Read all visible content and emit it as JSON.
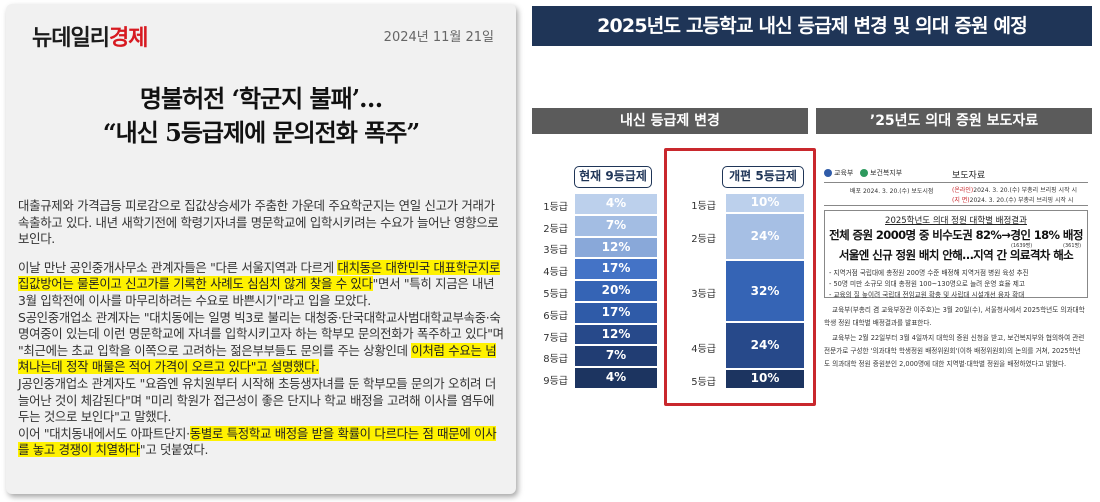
{
  "article": {
    "logo_part1": "뉴데일리",
    "logo_part2": "경제",
    "date": "2024년 11월 21일",
    "title_line1": "명불허전 ‘학군지 불패’…",
    "title_line2": "“내신 5등급제에 문의전화 폭주”",
    "p1": "대출규제와 가격급등 피로감으로 집값상승세가 주춤한 가운데 주요학군지는 연일 신고가 거래가 속출하고 있다. 내년 새학기전에 학령기자녀를 명문학교에 입학시키려는 수요가 늘어난 영향으로 보인다.",
    "p2_a": "이날 만난 공인중개사무소 관계자들은 \"다른 서울지역과 다르게 ",
    "p2_hl": "대치동은 대한민국 대표학군지로 집값방어는 물론이고 신고가를 기록한 사례도 심심치 않게 찾을 수 있다",
    "p2_b": "\"면서 \"특히 지금은 내년 3월 입학전에 이사를 마무리하려는 수요로 바쁜시기\"라고 입을 모았다.",
    "p3_a": "S공인중개업소 관계자는 \"대치동에는 일명 빅3로 불리는 대청중·단국대학교사범대학교부속중·숙명여중이 있는데 이런 명문학교에 자녀를 입학시키고자 하는 학부모 문의전화가 폭주하고 있다\"며 \"최근에는 초교 입학을 이쪽으로 고려하는 젊은부부들도 문의를 주는 상황인데 ",
    "p3_hl": "이처럼 수요는 넘쳐나는데 정작 매물은 적어 가격이 오르고 있다\"고 설명했다.",
    "p4": "J공인중개업소 관계자도 \"요즘엔 유치원부터 시작해 초등생자녀를 둔 학부모들 문의가 오히려 더 늘어난 것이 체감된다\"며 \"미리 학원가 접근성이 좋은 단지나 학교 배정을 고려해 이사를 염두에 두는 것으로 보인다\"고 말했다.",
    "p5_a": "이어 \"대치동내에서도 아파트단지·",
    "p5_hl": "동별로 특정학교 배정을 받을 확률이 다르다는 점 때문에 이사를 놓고 경쟁이 치열하다",
    "p5_b": "\"고 덧붙였다."
  },
  "banner": "2025년도 고등학교 내신 등급제 변경 및 의대 증원 예정",
  "section_left": "내신 등급제 변경",
  "section_right": "’25년도 의대 증원 보도자료",
  "chart_data": {
    "type": "bar",
    "title": "내신 등급제 변경",
    "series": [
      {
        "name": "현재 9등급제",
        "categories": [
          "1등급",
          "2등급",
          "3등급",
          "4등급",
          "5등급",
          "6등급",
          "7등급",
          "8등급",
          "9등급"
        ],
        "values": [
          4,
          7,
          12,
          17,
          20,
          17,
          12,
          7,
          4
        ],
        "labels": [
          "4%",
          "7%",
          "12%",
          "17%",
          "20%",
          "17%",
          "12%",
          "7%",
          "4%"
        ],
        "colors": [
          "#bcd0ec",
          "#a3bde3",
          "#89a8d9",
          "#4473c6",
          "#3564b5",
          "#2f5ba8",
          "#27498a",
          "#213d73",
          "#1c3460"
        ]
      },
      {
        "name": "개편 5등급제",
        "categories": [
          "1등급",
          "2등급",
          "3등급",
          "4등급",
          "5등급"
        ],
        "values": [
          10,
          24,
          32,
          24,
          10
        ],
        "labels": [
          "10%",
          "24%",
          "32%",
          "24%",
          "10%"
        ],
        "colors": [
          "#bcd0ec",
          "#a6bfe4",
          "#3564b5",
          "#27498a",
          "#1c3460"
        ]
      }
    ]
  },
  "press": {
    "org1": "교육부",
    "org2": "보건복지부",
    "kind": "보도자료",
    "meta_left": "배포   2024. 3. 20.(수)  보도시점",
    "meta_embargo": "(온라인)",
    "meta_embargo_time": "2024. 3. 20.(수) 부총리 브리핑 시작 시",
    "meta_paper": "(지  면)",
    "meta_paper_time": "2024. 3. 20.(수) 부총리 브리핑 시작 시",
    "box_title": "2025학년도 의대 정원 대학별 배정결과",
    "headline1": "전체 증원 2000명 중 비수도권 82%→경인 18% 배정",
    "sup1": "(1639명)",
    "sup2": "(361명)",
    "headline2": "서울엔 신규 정원 배치 안해…지역 간 의료격차 해소",
    "bullet1": "- 지역거점 국립대에 총정원 200명 수준 배정해 지역거점 병원 육성 추진",
    "bullet2": "- 50명 미만 소규모 의대 총정원 100~130명으로 늘려 운영 효율 제고",
    "bullet3": "- 교육의 질 높이려 국립대 전임교원 확충 및 사립대 시설개선 융자 확대",
    "para1": "교육부(부총리 겸 교육부장관 이주호)는 3월 20일(수), 서울청사에서 2025학년도 의과대학 학생 정원 대학별 배정결과를 발표한다.",
    "para2": "교육부는 2월 22일부터 3월 4일까지 대학의 증원 신청을 받고, 보건복지부와 협의하여 관련 전문가로 구성한 '의과대학 학생정원 배정위원회'(이하 배정위원회)의 논의를 거쳐, 2025학년도 의과대학 정원 증원분인 2,000명에 대한 지역별·대학별 정원을 배정하였다고 밝혔다."
  }
}
